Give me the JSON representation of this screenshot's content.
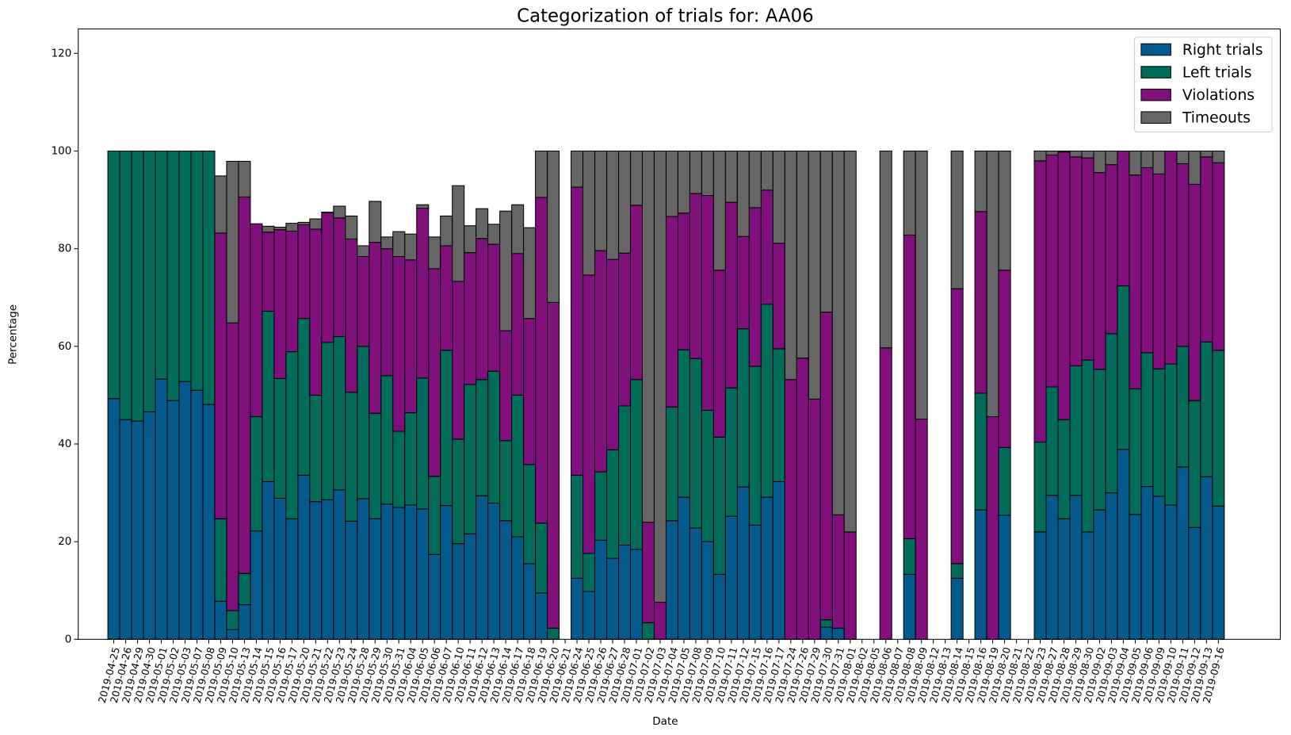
{
  "chart_data": {
    "type": "bar",
    "stacked": true,
    "title": "Categorization of trials for: AA06",
    "x_label": "Date",
    "y_label": "Percentage",
    "categories": [
      "2019-04-25",
      "2019-04-26",
      "2019-04-29",
      "2019-04-30",
      "2019-05-01",
      "2019-05-02",
      "2019-05-03",
      "2019-05-07",
      "2019-05-08",
      "2019-05-09",
      "2019-05-10",
      "2019-05-13",
      "2019-05-14",
      "2019-05-15",
      "2019-05-16",
      "2019-05-17",
      "2019-05-20",
      "2019-05-21",
      "2019-05-22",
      "2019-05-23",
      "2019-05-24",
      "2019-05-28",
      "2019-05-29",
      "2019-05-30",
      "2019-05-31",
      "2019-06-04",
      "2019-06-05",
      "2019-06-06",
      "2019-06-07",
      "2019-06-10",
      "2019-06-11",
      "2019-06-12",
      "2019-06-13",
      "2019-06-14",
      "2019-06-17",
      "2019-06-18",
      "2019-06-19",
      "2019-06-20",
      "2019-06-21",
      "2019-06-24",
      "2019-06-25",
      "2019-06-26",
      "2019-06-27",
      "2019-06-28",
      "2019-07-01",
      "2019-07-02",
      "2019-07-03",
      "2019-07-04",
      "2019-07-05",
      "2019-07-08",
      "2019-07-09",
      "2019-07-10",
      "2019-07-11",
      "2019-07-12",
      "2019-07-15",
      "2019-07-16",
      "2019-07-17",
      "2019-07-24",
      "2019-07-26",
      "2019-07-29",
      "2019-07-30",
      "2019-07-31",
      "2019-08-01",
      "2019-08-02",
      "2019-08-05",
      "2019-08-06",
      "2019-08-07",
      "2019-08-08",
      "2019-08-09",
      "2019-08-12",
      "2019-08-13",
      "2019-08-14",
      "2019-08-15",
      "2019-08-16",
      "2019-08-19",
      "2019-08-20",
      "2019-08-21",
      "2019-08-22",
      "2019-08-23",
      "2019-08-27",
      "2019-08-28",
      "2019-08-29",
      "2019-08-30",
      "2019-09-02",
      "2019-09-03",
      "2019-09-04",
      "2019-09-05",
      "2019-09-06",
      "2019-09-09",
      "2019-09-10",
      "2019-09-11",
      "2019-09-12",
      "2019-09-13",
      "2019-09-16"
    ],
    "series": [
      {
        "name": "Right trials",
        "color": "#045a8d",
        "values": [
          49.3,
          45,
          44.7,
          46.6,
          53.3,
          48.9,
          52.8,
          51,
          48.1,
          7.8,
          2,
          7.1,
          22.2,
          32.3,
          28.9,
          24.7,
          33.6,
          28.2,
          28.6,
          30.6,
          24.2,
          28.8,
          24.7,
          27.7,
          27,
          27.5,
          26.7,
          17.4,
          27.4,
          19.6,
          21.6,
          29.4,
          27.9,
          24.3,
          21,
          15.5,
          9.5,
          0,
          null,
          12.5,
          9.8,
          20.3,
          16.6,
          19.3,
          18.4,
          0,
          0,
          24.3,
          29.1,
          22.8,
          20,
          13.3,
          25.2,
          31.2,
          23.4,
          29.1,
          32.3,
          0,
          0,
          0,
          2.5,
          2.3,
          0,
          null,
          null,
          0,
          null,
          13.3,
          0,
          null,
          null,
          12.5,
          null,
          26.5,
          0,
          25.4,
          null,
          null,
          22,
          29.5,
          24.7,
          29.5,
          22,
          26.5,
          30,
          38.9,
          25.6,
          31.3,
          29.3,
          27.5,
          35.3,
          22.9,
          33.3,
          27.3
        ]
      },
      {
        "name": "Left trials",
        "color": "#016c59",
        "values": [
          50.7,
          55,
          55.3,
          53.4,
          46.7,
          51.1,
          47.2,
          49,
          51.9,
          16.9,
          3.9,
          6.4,
          23.4,
          34.9,
          24.5,
          34.2,
          32.1,
          21.8,
          32.2,
          31.4,
          26.4,
          31.2,
          21.6,
          26.3,
          15.6,
          18.9,
          26.8,
          16,
          31.8,
          21.4,
          30.6,
          23.8,
          27,
          16.4,
          29,
          20.3,
          14.3,
          2.3,
          null,
          21.1,
          7.8,
          14,
          22.2,
          28.5,
          34.8,
          3.4,
          0,
          23.3,
          30.2,
          34.7,
          26.9,
          28.1,
          26.3,
          32.4,
          32.5,
          39.5,
          27.2,
          0,
          0,
          0,
          1.5,
          0,
          0,
          null,
          null,
          0,
          null,
          7.3,
          0,
          null,
          null,
          3,
          null,
          23.9,
          0,
          13.9,
          null,
          null,
          18.4,
          22.2,
          20.3,
          26.5,
          35.2,
          28.8,
          32.6,
          33.5,
          25.7,
          27.4,
          26.1,
          28.9,
          24.7,
          26,
          27.6,
          31.9
        ]
      },
      {
        "name": "Violations",
        "color": "#810f7c",
        "values": [
          0,
          0,
          0,
          0,
          0,
          0,
          0,
          0,
          0,
          58.5,
          58.9,
          77.1,
          39.5,
          16.2,
          30.5,
          24.7,
          19.2,
          34,
          26.6,
          24.3,
          31.4,
          18.4,
          35,
          26,
          35.8,
          31.3,
          34.8,
          42.5,
          21.4,
          32.3,
          27,
          28.9,
          26,
          22.5,
          29,
          29.9,
          66.7,
          66.7,
          null,
          59,
          57,
          45.3,
          39,
          31.3,
          35.7,
          20.6,
          7.6,
          39,
          28,
          33.8,
          44,
          34.2,
          38,
          18.9,
          32.5,
          23.4,
          21.6,
          53.2,
          57.6,
          49.2,
          63,
          23.2,
          22,
          null,
          null,
          59.7,
          null,
          62.2,
          45.1,
          null,
          null,
          56.3,
          null,
          37.2,
          45.6,
          36.3,
          null,
          null,
          57.6,
          47.5,
          54.8,
          42.8,
          41.4,
          40.3,
          34.6,
          27.6,
          43.8,
          37.9,
          39.9,
          43.6,
          37.4,
          44.3,
          37.9,
          38.4
        ]
      },
      {
        "name": "Timeouts",
        "color": "#666666",
        "values": [
          0,
          0,
          0,
          0,
          0,
          0,
          0,
          0,
          0,
          11.7,
          33.1,
          7.3,
          0,
          1.2,
          0.5,
          1.6,
          0.5,
          2.1,
          0.1,
          2.4,
          4.7,
          2.2,
          8.4,
          2.4,
          5.1,
          5.3,
          0.7,
          6.5,
          6.1,
          19.6,
          5.5,
          6.1,
          4.1,
          24.5,
          10,
          18.6,
          9.5,
          31,
          null,
          7.4,
          25.4,
          20.4,
          22.2,
          20.9,
          11.1,
          76,
          92.4,
          13.4,
          12.7,
          8.7,
          9.1,
          24.4,
          10.5,
          17.5,
          11.6,
          8,
          18.9,
          46.8,
          42.4,
          50.8,
          33,
          74.5,
          78,
          null,
          null,
          40.3,
          null,
          17.2,
          54.9,
          null,
          null,
          28.2,
          null,
          12.4,
          54.4,
          24.4,
          null,
          null,
          2,
          0.8,
          0.2,
          1.2,
          1.4,
          4.4,
          2.8,
          0,
          4.9,
          3.4,
          4.7,
          0,
          2.6,
          6.8,
          1.2,
          2.4
        ]
      }
    ],
    "ylim": [
      0,
      125
    ],
    "yticks": [
      0,
      20,
      40,
      60,
      80,
      100,
      120
    ],
    "legend": "upper right",
    "edgecolor": "#000000"
  }
}
